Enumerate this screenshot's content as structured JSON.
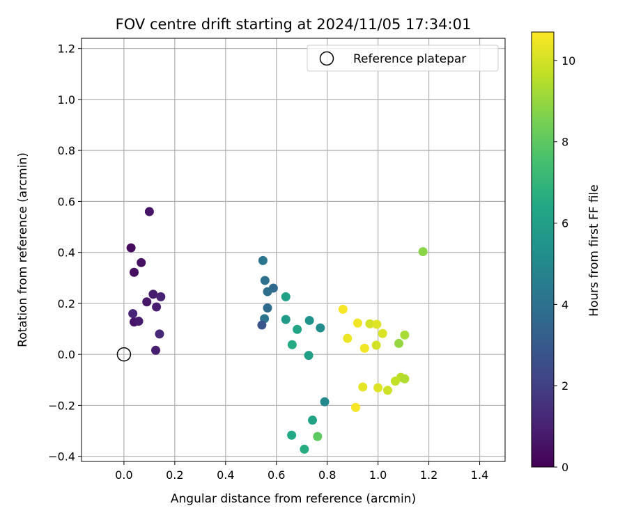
{
  "chart_data": {
    "type": "scatter",
    "title": "FOV centre drift starting at 2024/11/05 17:34:01",
    "xlabel": "Angular distance from reference (arcmin)",
    "ylabel": "Rotation from reference (arcmin)",
    "xlim": [
      -0.167,
      1.5
    ],
    "ylim": [
      -0.42,
      1.24
    ],
    "xticks": [
      0.0,
      0.2,
      0.4,
      0.6,
      0.8,
      1.0,
      1.2,
      1.4
    ],
    "xtick_labels": [
      "0.0",
      "0.2",
      "0.4",
      "0.6",
      "0.8",
      "1.0",
      "1.2",
      "1.4"
    ],
    "yticks": [
      -0.4,
      -0.2,
      0.0,
      0.2,
      0.4,
      0.6,
      0.8,
      1.0,
      1.2
    ],
    "ytick_labels": [
      "−0.4",
      "−0.2",
      "0.0",
      "0.2",
      "0.4",
      "0.6",
      "0.8",
      "1.0",
      "1.2"
    ],
    "grid": true,
    "legend": {
      "placement": "top-right",
      "entries": [
        "Reference platepar"
      ]
    },
    "reference_point": {
      "x": 0.0,
      "y": 0.0,
      "label": "Reference platepar"
    },
    "colorbar": {
      "label": "Hours from first FF file",
      "min": 0,
      "max": 10.7,
      "ticks": [
        0,
        2,
        4,
        6,
        8,
        10
      ],
      "tick_labels": [
        "0",
        "2",
        "4",
        "6",
        "8",
        "10"
      ],
      "colormap": "viridis"
    },
    "points": [
      {
        "x": 0.1,
        "y": 0.56,
        "c": 0.6
      },
      {
        "x": 0.028,
        "y": 0.418,
        "c": 0.3
      },
      {
        "x": 0.068,
        "y": 0.36,
        "c": 0.5
      },
      {
        "x": 0.04,
        "y": 0.322,
        "c": 0.4
      },
      {
        "x": 0.115,
        "y": 0.236,
        "c": 0.8
      },
      {
        "x": 0.145,
        "y": 0.226,
        "c": 1.0
      },
      {
        "x": 0.09,
        "y": 0.206,
        "c": 0.7
      },
      {
        "x": 0.128,
        "y": 0.186,
        "c": 0.9
      },
      {
        "x": 0.035,
        "y": 0.16,
        "c": 1.1
      },
      {
        "x": 0.04,
        "y": 0.127,
        "c": 0.6
      },
      {
        "x": 0.058,
        "y": 0.13,
        "c": 0.8
      },
      {
        "x": 0.14,
        "y": 0.08,
        "c": 1.2
      },
      {
        "x": 0.125,
        "y": 0.016,
        "c": 0.9
      },
      {
        "x": 0.547,
        "y": 0.368,
        "c": 4.2
      },
      {
        "x": 0.555,
        "y": 0.29,
        "c": 4.0
      },
      {
        "x": 0.588,
        "y": 0.26,
        "c": 3.6
      },
      {
        "x": 0.565,
        "y": 0.246,
        "c": 3.9
      },
      {
        "x": 0.565,
        "y": 0.182,
        "c": 3.7
      },
      {
        "x": 0.553,
        "y": 0.14,
        "c": 4.1
      },
      {
        "x": 0.543,
        "y": 0.115,
        "c": 2.8
      },
      {
        "x": 0.637,
        "y": 0.226,
        "c": 6.0
      },
      {
        "x": 0.637,
        "y": 0.137,
        "c": 5.8
      },
      {
        "x": 0.682,
        "y": 0.098,
        "c": 6.3
      },
      {
        "x": 0.73,
        "y": 0.133,
        "c": 5.4
      },
      {
        "x": 0.773,
        "y": 0.104,
        "c": 5.2
      },
      {
        "x": 0.662,
        "y": 0.038,
        "c": 6.5
      },
      {
        "x": 0.727,
        "y": -0.004,
        "c": 6.0
      },
      {
        "x": 0.79,
        "y": -0.186,
        "c": 5.0
      },
      {
        "x": 0.742,
        "y": -0.258,
        "c": 6.2
      },
      {
        "x": 0.66,
        "y": -0.317,
        "c": 6.4
      },
      {
        "x": 0.762,
        "y": -0.322,
        "c": 8.0
      },
      {
        "x": 0.71,
        "y": -0.372,
        "c": 6.6
      },
      {
        "x": 1.177,
        "y": 0.403,
        "c": 8.8
      },
      {
        "x": 0.862,
        "y": 0.177,
        "c": 10.6
      },
      {
        "x": 0.92,
        "y": 0.123,
        "c": 10.5
      },
      {
        "x": 0.968,
        "y": 0.12,
        "c": 10.0
      },
      {
        "x": 0.995,
        "y": 0.118,
        "c": 10.2
      },
      {
        "x": 1.018,
        "y": 0.082,
        "c": 10.1
      },
      {
        "x": 0.88,
        "y": 0.063,
        "c": 10.4
      },
      {
        "x": 1.105,
        "y": 0.076,
        "c": 9.3
      },
      {
        "x": 1.082,
        "y": 0.043,
        "c": 9.0
      },
      {
        "x": 0.993,
        "y": 0.036,
        "c": 10.0
      },
      {
        "x": 0.947,
        "y": 0.024,
        "c": 10.5
      },
      {
        "x": 1.09,
        "y": -0.09,
        "c": 9.6
      },
      {
        "x": 1.105,
        "y": -0.096,
        "c": 9.4
      },
      {
        "x": 1.068,
        "y": -0.105,
        "c": 9.7
      },
      {
        "x": 0.94,
        "y": -0.128,
        "c": 10.3
      },
      {
        "x": 1.0,
        "y": -0.131,
        "c": 10.2
      },
      {
        "x": 1.038,
        "y": -0.141,
        "c": 9.9
      },
      {
        "x": 0.912,
        "y": -0.208,
        "c": 10.6
      }
    ]
  }
}
